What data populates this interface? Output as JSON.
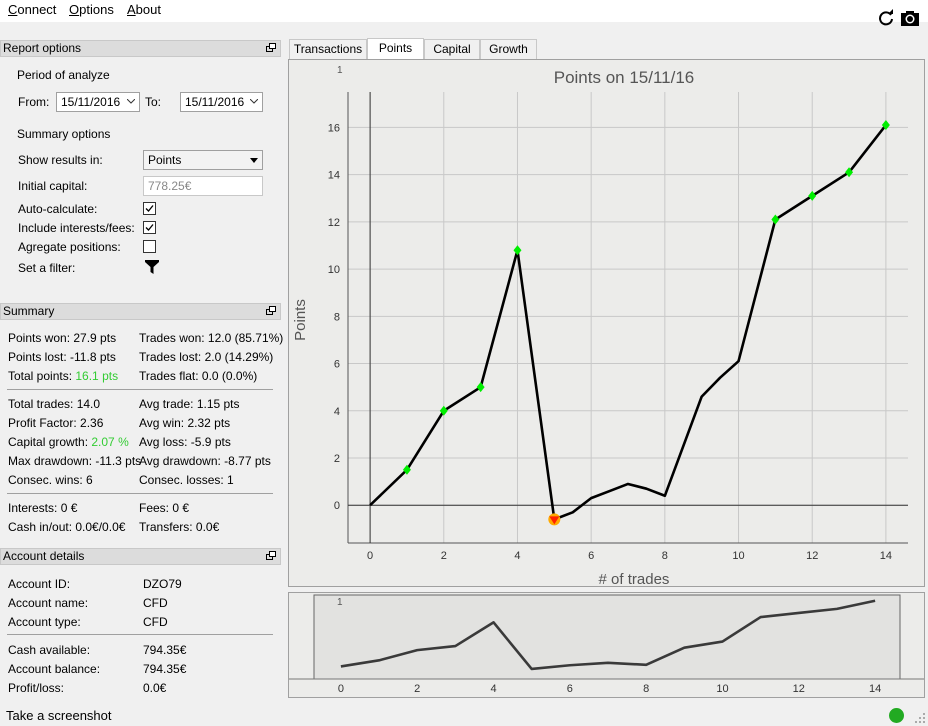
{
  "menu": {
    "items": [
      {
        "label": "Connect",
        "underline": "C",
        "rest": "onnect"
      },
      {
        "label": "Options",
        "underline": "O",
        "rest": "ptions"
      },
      {
        "label": "About",
        "underline": "A",
        "rest": "bout"
      }
    ],
    "refresh_icon": "refresh-icon",
    "camera_icon": "camera-icon"
  },
  "report_options": {
    "title": "Report options",
    "period_label": "Period of analyze",
    "from_label": "From:",
    "from_value": "15/11/2016",
    "to_label": "To:",
    "to_value": "15/11/2016",
    "summary_label": "Summary options",
    "show_results_label": "Show results in:",
    "show_results_value": "Points",
    "initial_capital_label": "Initial capital:",
    "initial_capital_value": "778.25€",
    "auto_calc_label": "Auto-calculate:",
    "auto_calc_checked": true,
    "include_fees_label": "Include interests/fees:",
    "include_fees_checked": true,
    "aggregate_label": "Agregate positions:",
    "aggregate_checked": false,
    "filter_label": "Set a filter:",
    "filter_icon": "filter-icon"
  },
  "summary": {
    "title": "Summary",
    "points_won": "Points won: 27.9 pts",
    "points_lost": "Points lost: -11.8 pts",
    "total_points_label": "Total points: ",
    "total_points_value": "16.1 pts",
    "trades_won": "Trades won: 12.0 (85.71%)",
    "trades_lost": "Trades lost: 2.0 (14.29%)",
    "trades_flat": "Trades flat: 0.0 (0.0%)",
    "total_trades": "Total trades: 14.0",
    "profit_factor": "Profit Factor: 2.36",
    "capital_growth_label": "Capital growth: ",
    "capital_growth_value": "2.07 %",
    "max_drawdown": "Max drawdown: -11.3 pts",
    "consec_wins": "Consec. wins: 6",
    "avg_trade": "Avg trade: 1.15 pts",
    "avg_win": "Avg win: 2.32 pts",
    "avg_loss": "Avg loss: -5.9 pts",
    "avg_drawdown": "Avg drawdown: -8.77 pts",
    "consec_losses": "Consec. losses: 1",
    "interests": "Interests: 0 €",
    "cash_in_out": "Cash in/out: 0.0€/0.0€",
    "fees": "Fees: 0 €",
    "transfers": "Transfers: 0.0€"
  },
  "account": {
    "title": "Account details",
    "id_label": "Account ID:",
    "id_value": "DZO79",
    "name_label": "Account name:",
    "name_value": "CFD",
    "type_label": "Account type:",
    "type_value": "CFD",
    "cash_label": "Cash available:",
    "cash_value": "794.35€",
    "balance_label": "Account balance:",
    "balance_value": "794.35€",
    "pl_label": "Profit/loss:",
    "pl_value": "0.0€"
  },
  "tabs": [
    {
      "label": "Transactions",
      "active": false
    },
    {
      "label": "Points",
      "active": true
    },
    {
      "label": "Capital",
      "active": false
    },
    {
      "label": "Growth",
      "active": false
    }
  ],
  "status": {
    "text": "Take a screenshot",
    "indicator_color": "#22aa22"
  },
  "chart_data": [
    {
      "type": "line",
      "title": "Points on 15/11/16",
      "xlabel": "# of trades",
      "ylabel": "Points",
      "corner_label": "1",
      "xlim": [
        -0.6,
        14.6
      ],
      "ylim": [
        -1.6,
        17.5
      ],
      "xticks": [
        0,
        2,
        4,
        6,
        8,
        10,
        12,
        14
      ],
      "yticks": [
        0,
        2,
        4,
        6,
        8,
        10,
        12,
        14,
        16
      ],
      "grid": true,
      "line_color": "#000000",
      "x": [
        0,
        1,
        2,
        3,
        4,
        5,
        5.5,
        6,
        6.5,
        7,
        7.5,
        8,
        8.5,
        9,
        9.5,
        10,
        10.5,
        11,
        12,
        13,
        14
      ],
      "y": [
        0,
        1.5,
        4.0,
        5.0,
        10.8,
        -0.6,
        -0.3,
        0.3,
        0.6,
        0.9,
        0.7,
        0.4,
        2.5,
        4.6,
        5.4,
        6.1,
        9.1,
        12.1,
        13.1,
        14.1,
        16.1
      ],
      "marked_points": [
        {
          "x": 1,
          "y": 1.5,
          "color": "#00ee00"
        },
        {
          "x": 2,
          "y": 4.0,
          "color": "#00ee00"
        },
        {
          "x": 3,
          "y": 5.0,
          "color": "#00ee00"
        },
        {
          "x": 4,
          "y": 10.8,
          "color": "#00ee00"
        },
        {
          "x": 5,
          "y": -0.6,
          "color": "#ff2200"
        },
        {
          "x": 11,
          "y": 12.1,
          "color": "#00ee00"
        },
        {
          "x": 12,
          "y": 13.1,
          "color": "#00ee00"
        },
        {
          "x": 13,
          "y": 14.1,
          "color": "#00ee00"
        },
        {
          "x": 14,
          "y": 16.1,
          "color": "#00ee00"
        }
      ]
    },
    {
      "type": "line",
      "title": "",
      "corner_label": "1",
      "xlim": [
        -0.6,
        14.6
      ],
      "ylim": [
        -1.6,
        17.5
      ],
      "xticks": [
        0,
        2,
        4,
        6,
        8,
        10,
        12,
        14
      ],
      "grid": true,
      "line_color": "#3a3a3a",
      "x": [
        0,
        1,
        2,
        3,
        4,
        5,
        6,
        7,
        8,
        9,
        10,
        11,
        12,
        13,
        14
      ],
      "y": [
        0,
        1.5,
        4.0,
        5.0,
        10.8,
        -0.6,
        0.3,
        0.9,
        0.4,
        4.6,
        6.1,
        12.1,
        13.1,
        14.1,
        16.1
      ]
    }
  ]
}
